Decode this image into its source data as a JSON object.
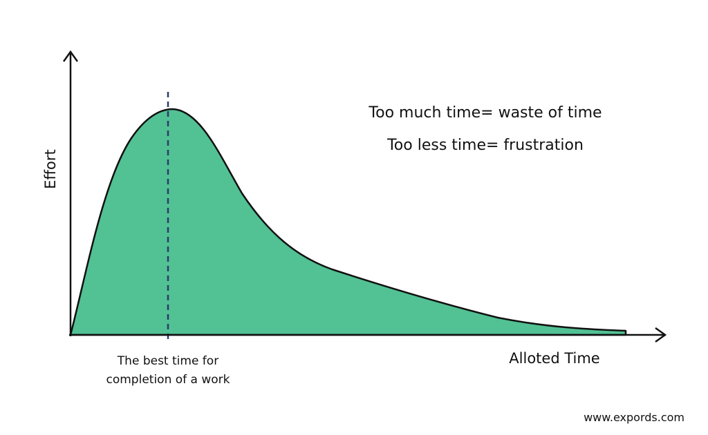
{
  "axes": {
    "y_label": "Effort",
    "x_label": "Alloted Time"
  },
  "notes": [
    "Too much time= waste of time",
    "Too less time= frustration"
  ],
  "marker_label": [
    "The best time for",
    "completion of a work"
  ],
  "footer": "www.expords.com"
}
